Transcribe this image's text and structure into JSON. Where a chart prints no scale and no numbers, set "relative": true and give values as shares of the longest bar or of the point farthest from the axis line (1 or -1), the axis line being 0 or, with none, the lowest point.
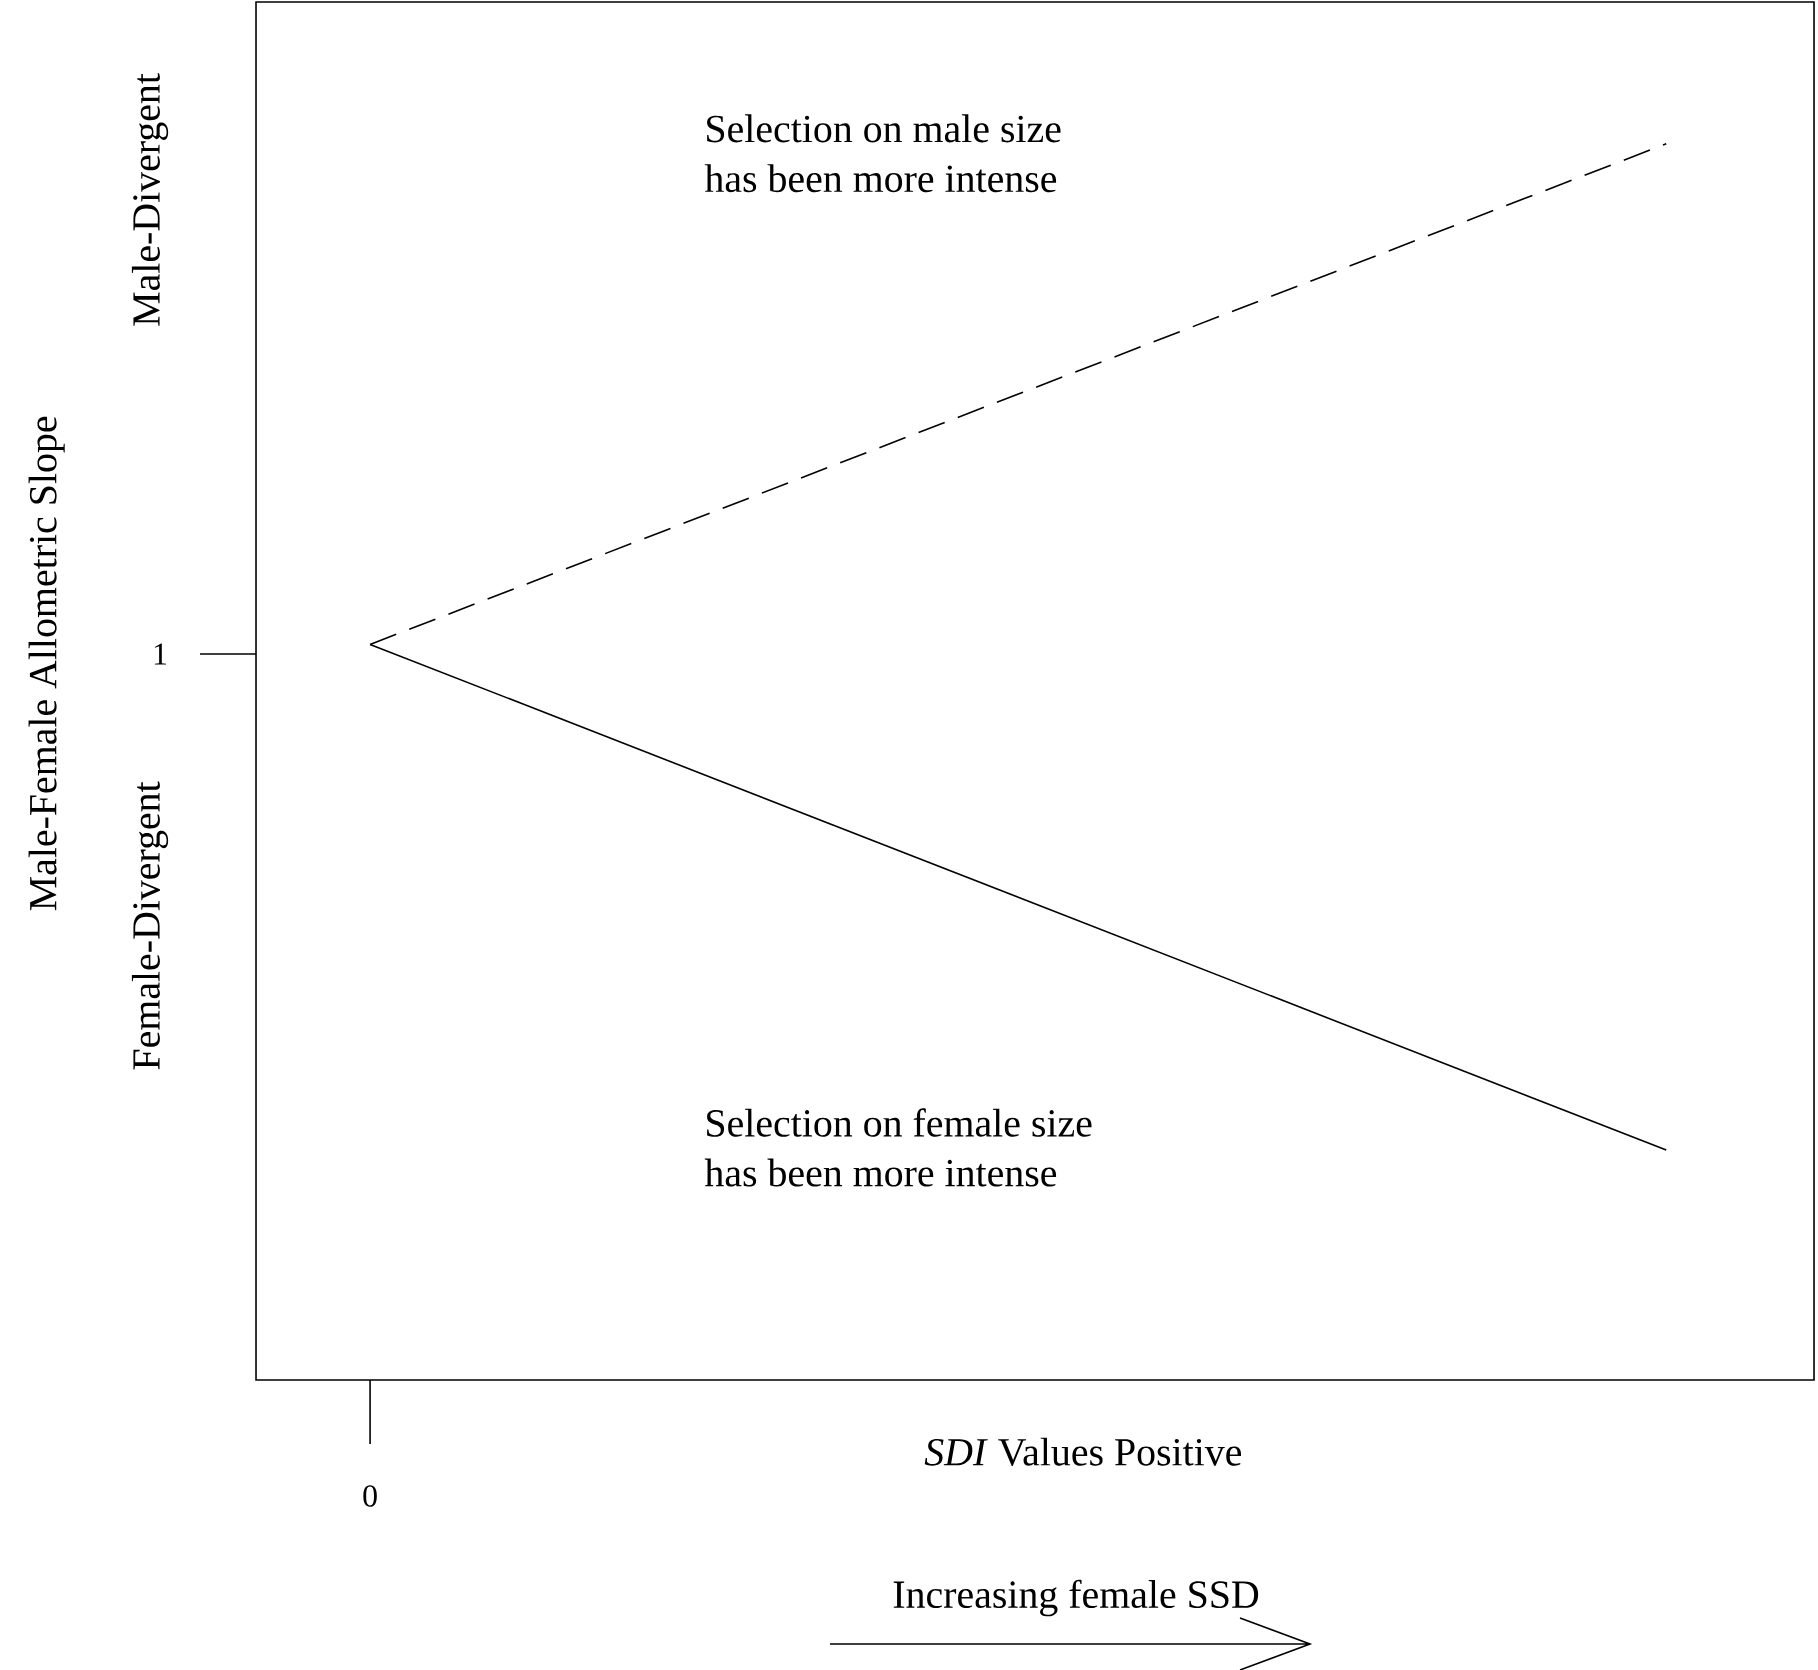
{
  "chart_data": {
    "type": "line",
    "relative": true,
    "xlabel": "*SDI* Values Positive",
    "ylabel": "Male-Female Allometric Slope",
    "categories": [
      null,
      null
    ],
    "marker": "none",
    "series": [
      {
        "color": "#000000",
        "line_style": "dashed",
        "values": [
          0.595,
          1
        ]
      },
      {
        "color": "#000000",
        "line_style": "solid",
        "values": [
          0.595,
          0.186
        ]
      }
    ],
    "annotations": [
      "1",
      "Male-Divergent",
      "Female-Divergent",
      "Selection on male size\nhas been more intense",
      "Selection on female size\nhas been more intense",
      "Increasing female SSD",
      "0"
    ]
  }
}
